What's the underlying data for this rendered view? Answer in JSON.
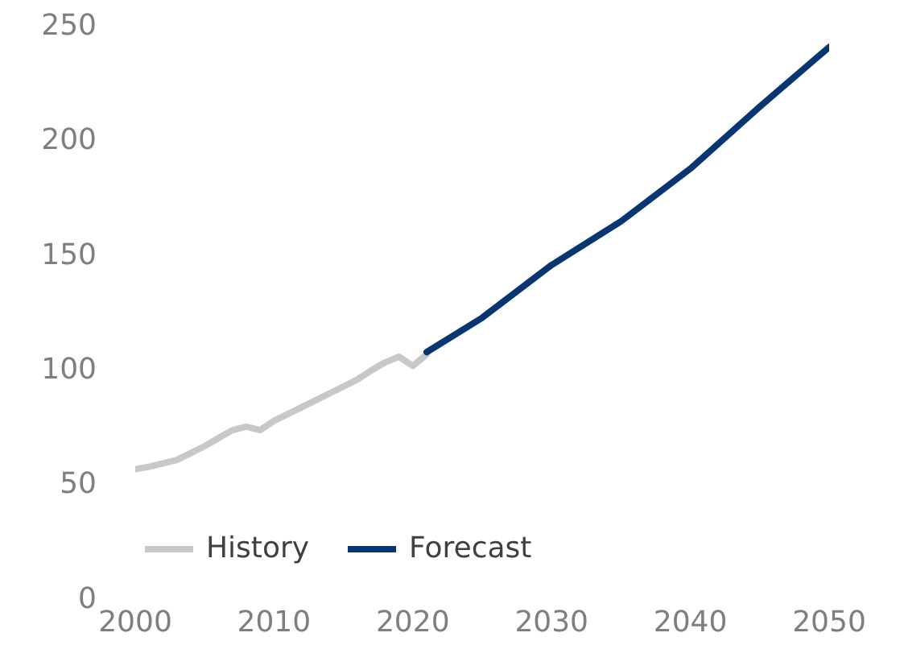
{
  "chart_data": {
    "type": "line",
    "xlim": [
      2000,
      2050
    ],
    "xticks": [
      2000,
      2010,
      2020,
      2030,
      2040,
      2050
    ],
    "ylim": [
      0,
      250
    ],
    "yticks": [
      0,
      50,
      100,
      150,
      200,
      250
    ],
    "grid": false,
    "legend": "bottom left",
    "marker": "none",
    "line_style": "solid",
    "series": [
      {
        "name": "History",
        "color": "#c8c8c8",
        "x": [
          2000,
          2001,
          2002,
          2003,
          2004,
          2005,
          2006,
          2007,
          2008,
          2009,
          2010,
          2011,
          2012,
          2013,
          2014,
          2015,
          2016,
          2017,
          2018,
          2019,
          2020,
          2021
        ],
        "values": [
          56,
          57,
          58.5,
          60,
          63,
          66,
          69.5,
          73,
          74.5,
          73,
          77,
          80,
          83,
          86,
          89,
          92,
          95,
          99,
          102.5,
          105,
          101,
          106
        ]
      },
      {
        "name": "Forecast",
        "color": "#073672",
        "x": [
          2021,
          2025,
          2030,
          2035,
          2040,
          2045,
          2050
        ],
        "values": [
          107,
          122,
          145,
          164,
          187,
          214,
          240
        ]
      }
    ]
  }
}
